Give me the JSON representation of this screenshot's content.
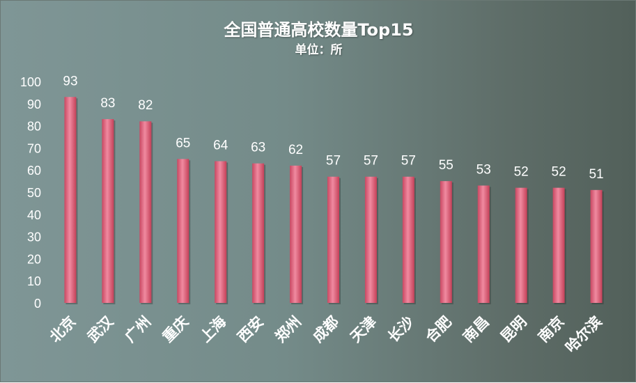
{
  "chart_data": {
    "type": "bar",
    "title": "全国普通高校数量Top15",
    "subtitle": "单位：所",
    "categories": [
      "北京",
      "武汉",
      "广州",
      "重庆",
      "上海",
      "西安",
      "郑州",
      "成都",
      "天津",
      "长沙",
      "合肥",
      "南昌",
      "昆明",
      "南京",
      "哈尔滨"
    ],
    "values": [
      93,
      83,
      82,
      65,
      64,
      63,
      62,
      57,
      57,
      57,
      55,
      53,
      52,
      52,
      51
    ],
    "ylim": [
      0,
      100
    ],
    "yticks": [
      0,
      10,
      20,
      30,
      40,
      50,
      60,
      70,
      80,
      90,
      100
    ],
    "grid": false,
    "legend": "none",
    "bar_color": "#e0607a"
  }
}
